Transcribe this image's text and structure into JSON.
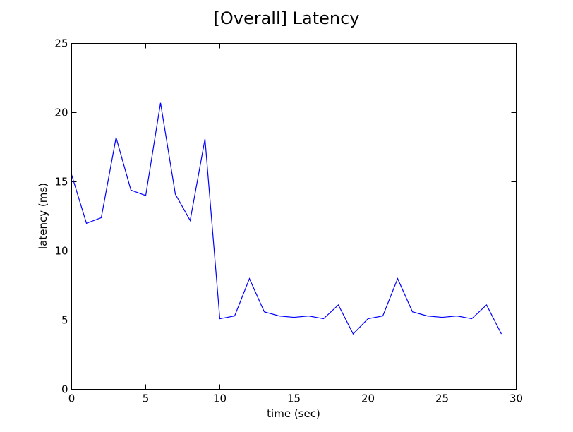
{
  "chart_data": {
    "type": "line",
    "title": "[Overall] Latency",
    "xlabel": "time (sec)",
    "ylabel": "latency (ms)",
    "xlim": [
      0,
      30
    ],
    "ylim": [
      0,
      25
    ],
    "xticks": [
      0,
      5,
      10,
      15,
      20,
      25,
      30
    ],
    "yticks": [
      0,
      5,
      10,
      15,
      20,
      25
    ],
    "grid": false,
    "line_color": "#0000ff",
    "series": [
      {
        "x": [
          0,
          1,
          2,
          3,
          4,
          5,
          6,
          7,
          8,
          9,
          10,
          11,
          12,
          13,
          14,
          15,
          16,
          17,
          18,
          19,
          20,
          21,
          22,
          23,
          24,
          25,
          26,
          27,
          28,
          29
        ],
        "y": [
          15.5,
          12.0,
          12.4,
          18.2,
          14.4,
          14.0,
          20.7,
          14.1,
          12.2,
          18.1,
          5.1,
          5.3,
          8.0,
          5.6,
          5.3,
          5.2,
          5.3,
          5.1,
          6.1,
          4.0,
          5.1,
          5.3,
          8.0,
          5.6,
          5.3,
          5.2,
          5.3,
          5.1,
          6.1,
          4.0
        ]
      }
    ]
  }
}
